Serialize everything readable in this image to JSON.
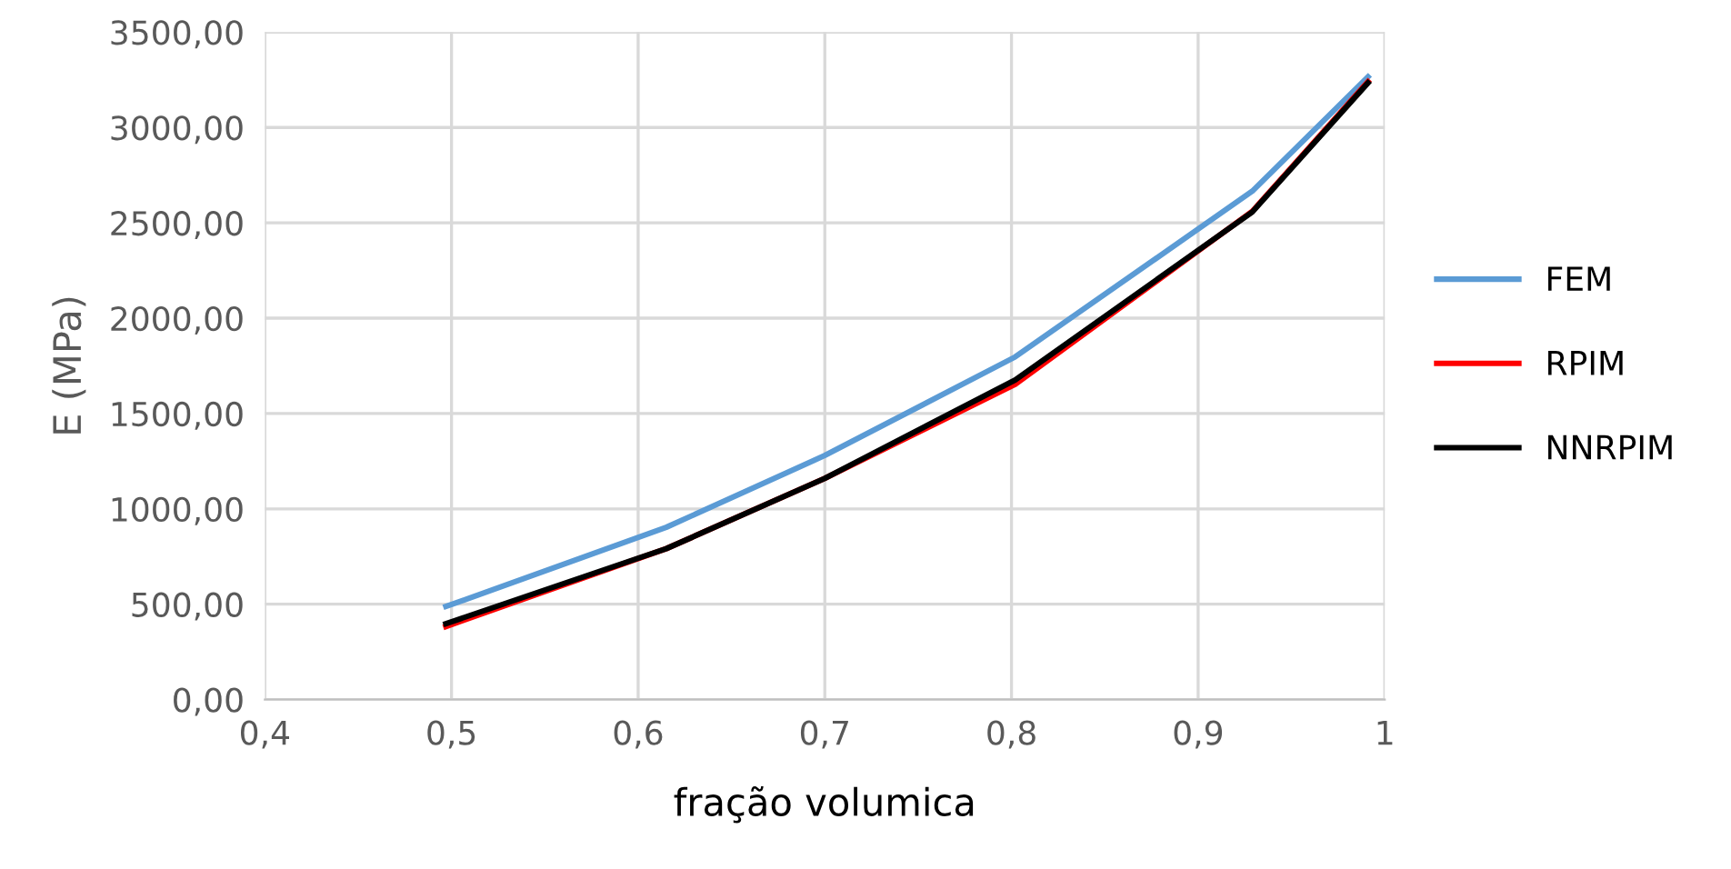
{
  "chart_data": {
    "type": "line",
    "xlabel": "fração volumica",
    "ylabel": "E (MPa)",
    "x": [
      0.497,
      0.615,
      0.7,
      0.802,
      0.929,
      0.991
    ],
    "series": [
      {
        "name": "FEM",
        "color": "#5b9bd5",
        "values": [
          488,
          903,
          1280,
          1797,
          2666,
          3266
        ]
      },
      {
        "name": "RPIM",
        "color": "#ff0000",
        "values": [
          383,
          791,
          1160,
          1653,
          2560,
          3240
        ]
      },
      {
        "name": "NNRPIM",
        "color": "#000000",
        "values": [
          398,
          791,
          1160,
          1676,
          2557,
          3234
        ]
      }
    ],
    "xlim": [
      0.4,
      1.0
    ],
    "xticks": [
      {
        "value": 0.4,
        "label": "0,4"
      },
      {
        "value": 0.5,
        "label": "0,5"
      },
      {
        "value": 0.6,
        "label": "0,6"
      },
      {
        "value": 0.7,
        "label": "0,7"
      },
      {
        "value": 0.8,
        "label": "0,8"
      },
      {
        "value": 0.9,
        "label": "0,9"
      },
      1
    ],
    "ylim": [
      0,
      3500
    ],
    "yticks": [
      {
        "value": 0,
        "label": "0,00"
      },
      {
        "value": 500,
        "label": "500,00"
      },
      {
        "value": 1000,
        "label": "1000,00"
      },
      {
        "value": 1500,
        "label": "1500,00"
      },
      {
        "value": 2000,
        "label": "2000,00"
      },
      {
        "value": 2500,
        "label": "2500,00"
      },
      {
        "value": 3000,
        "label": "3000,00"
      },
      {
        "value": 3500,
        "label": "3500,00"
      }
    ],
    "grid": true,
    "legend": "right",
    "marker": "none",
    "line_style": "solid"
  }
}
